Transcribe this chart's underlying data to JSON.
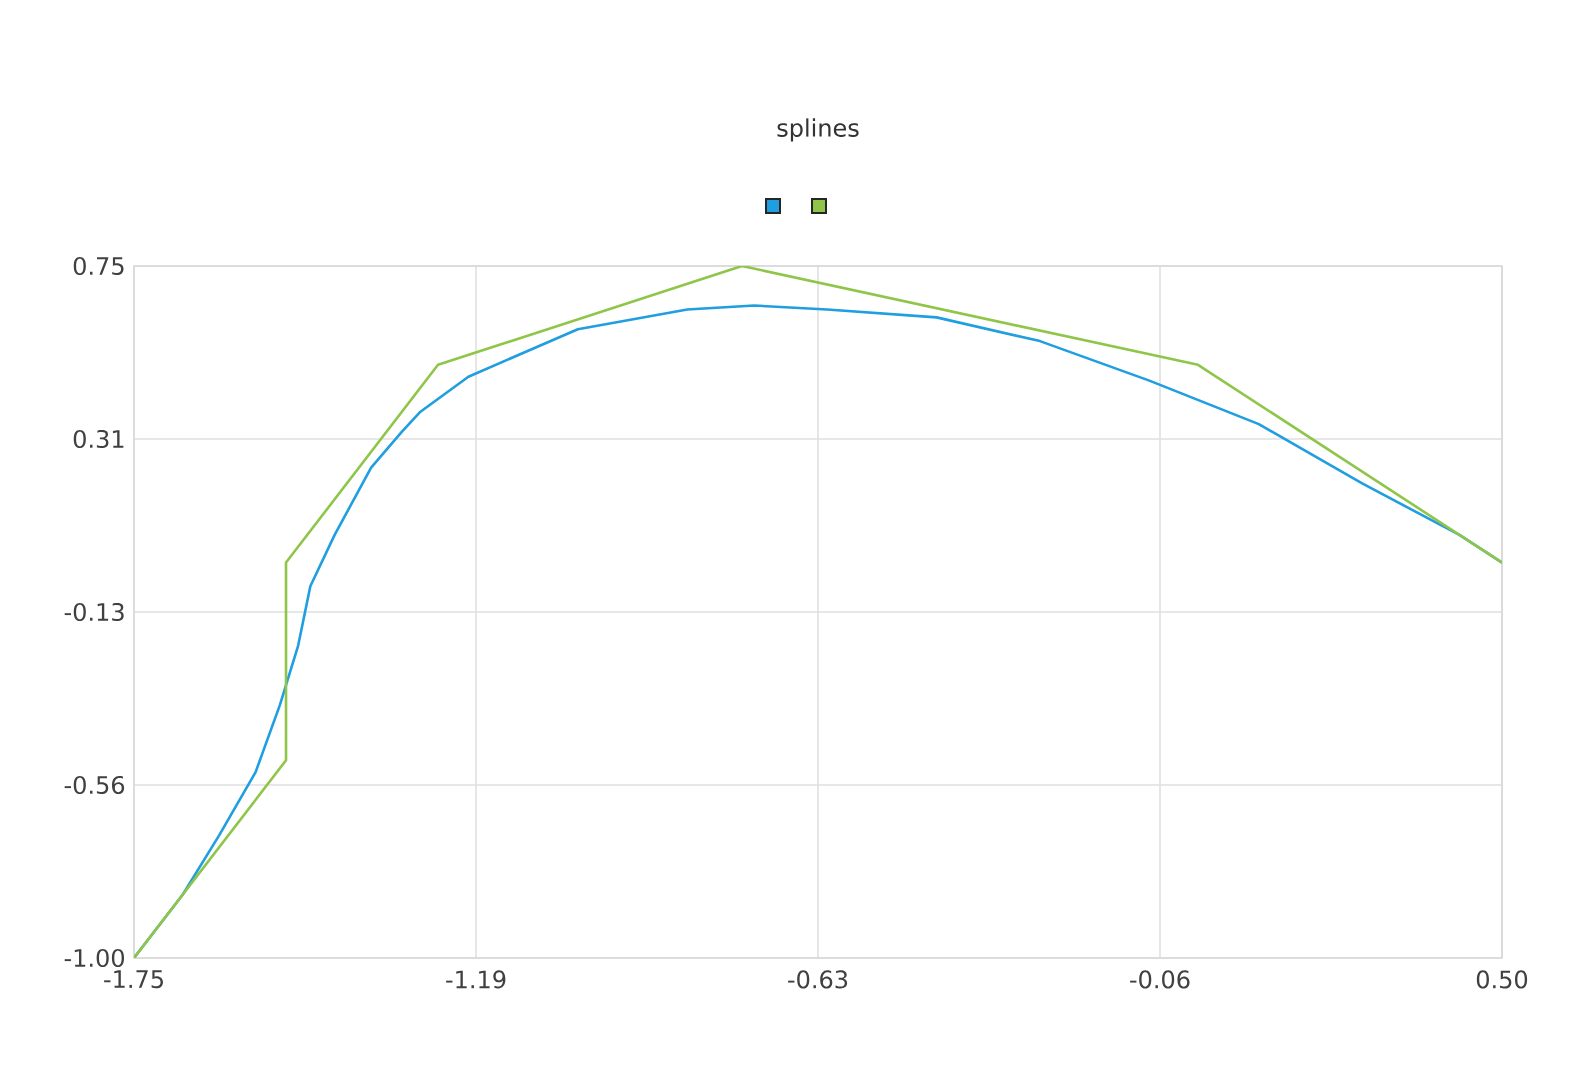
{
  "chart_data": {
    "type": "line",
    "title": "splines",
    "grid": true,
    "xlim": [
      -1.75,
      0.5
    ],
    "ylim": [
      -1.0,
      0.75
    ],
    "xticks": [
      {
        "value": -1.75,
        "label": "-1.75"
      },
      {
        "value": -1.1875,
        "label": "-1.19"
      },
      {
        "value": -0.625,
        "label": "-0.63"
      },
      {
        "value": -0.0625,
        "label": "-0.06"
      },
      {
        "value": 0.5,
        "label": "0.50"
      }
    ],
    "yticks": [
      {
        "value": 0.75,
        "label": "0.75"
      },
      {
        "value": 0.3125,
        "label": "0.31"
      },
      {
        "value": -0.125,
        "label": "-0.13"
      },
      {
        "value": -0.5625,
        "label": "-0.56"
      },
      {
        "value": -1.0,
        "label": "-1.00"
      }
    ],
    "series": [
      {
        "color": "#1f9ee0",
        "x": [
          -1.75,
          -1.67,
          -1.61,
          -1.55,
          -1.51,
          -1.48,
          -1.46,
          -1.42,
          -1.36,
          -1.31,
          -1.28,
          -1.2,
          -1.02,
          -0.84,
          -0.73,
          -0.61,
          -0.43,
          -0.26,
          -0.08,
          0.1,
          0.27,
          0.43,
          0.5
        ],
        "values": [
          -1.0,
          -0.84,
          -0.69,
          -0.53,
          -0.36,
          -0.21,
          -0.06,
          0.07,
          0.24,
          0.33,
          0.38,
          0.47,
          0.59,
          0.64,
          0.65,
          0.64,
          0.62,
          0.56,
          0.46,
          0.35,
          0.2,
          0.07,
          0.0
        ]
      },
      {
        "color": "#8fc549",
        "x": [
          -1.75,
          -1.5,
          -1.5,
          -1.25,
          -0.75,
          0.0,
          0.5
        ],
        "values": [
          -1.0,
          -0.5,
          0.0,
          0.5,
          0.75,
          0.5,
          0.0
        ]
      }
    ]
  }
}
